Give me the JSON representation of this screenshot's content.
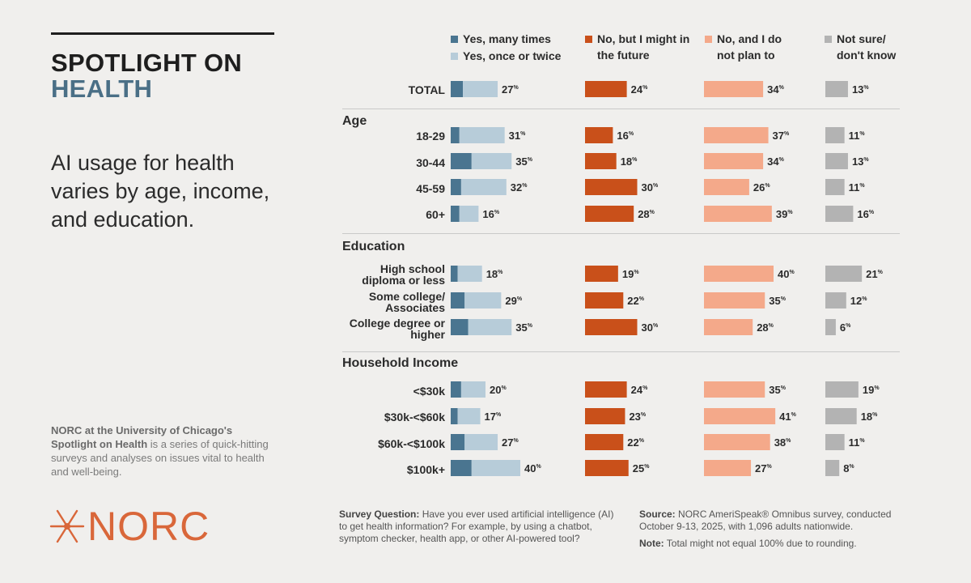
{
  "header": {
    "line1": "SPOTLIGHT ON",
    "line2": "HEALTH"
  },
  "headline": "AI usage for health varies by age, income, and education.",
  "about": {
    "org": "NORC at the University of Chicago's",
    "series": "Spotlight on Health",
    "rest": "is a series of quick-hitting surveys and analyses on issues vital to health and well-being."
  },
  "logo": {
    "word": "NORC"
  },
  "footer": {
    "question_label": "Survey Question:",
    "question": "Have you ever used artificial intelligence (AI) to get health information? For example, by using a chatbot, symptom checker, health app, or other AI-powered tool?",
    "source_label": "Source:",
    "source": "NORC AmeriSpeak® Omnibus survey, conducted October 9-13, 2025, with 1,096 adults nationwide.",
    "note_label": "Note:",
    "note": "Total might not equal 100% due to rounding."
  },
  "colors": {
    "yes_many": "#4a7590",
    "yes_once": "#b7ccd9",
    "no_future": "#c9501a",
    "no_plan": "#f4a98a",
    "not_sure": "#b3b3b3"
  },
  "chart_data": {
    "type": "bar",
    "orientation": "horizontal",
    "legend": [
      {
        "key": "yes_many",
        "label": "Yes, many times"
      },
      {
        "key": "yes_once",
        "label": "Yes, once or twice"
      },
      {
        "key": "no_future",
        "label": "No, but I might in the future"
      },
      {
        "key": "no_plan",
        "label": "No, and I do not plan to"
      },
      {
        "key": "not_sure",
        "label": "Not sure/ don't know"
      }
    ],
    "percent_suffix": "%",
    "groups": [
      {
        "name": "",
        "rows": [
          {
            "label": "TOTAL",
            "yes_many": 7,
            "yes_total": 27,
            "no_future": 24,
            "no_plan": 34,
            "not_sure": 13
          }
        ]
      },
      {
        "name": "Age",
        "rows": [
          {
            "label": "18-29",
            "yes_many": 5,
            "yes_total": 31,
            "no_future": 16,
            "no_plan": 37,
            "not_sure": 11
          },
          {
            "label": "30-44",
            "yes_many": 12,
            "yes_total": 35,
            "no_future": 18,
            "no_plan": 34,
            "not_sure": 13
          },
          {
            "label": "45-59",
            "yes_many": 6,
            "yes_total": 32,
            "no_future": 30,
            "no_plan": 26,
            "not_sure": 11
          },
          {
            "label": "60+",
            "yes_many": 5,
            "yes_total": 16,
            "no_future": 28,
            "no_plan": 39,
            "not_sure": 16
          }
        ]
      },
      {
        "name": "Education",
        "rows": [
          {
            "label": "High school diploma or less",
            "yes_many": 4,
            "yes_total": 18,
            "no_future": 19,
            "no_plan": 40,
            "not_sure": 21
          },
          {
            "label": "Some college/ Associates",
            "yes_many": 8,
            "yes_total": 29,
            "no_future": 22,
            "no_plan": 35,
            "not_sure": 12
          },
          {
            "label": "College degree or higher",
            "yes_many": 10,
            "yes_total": 35,
            "no_future": 30,
            "no_plan": 28,
            "not_sure": 6
          }
        ]
      },
      {
        "name": "Household Income",
        "rows": [
          {
            "label": "<$30k",
            "yes_many": 6,
            "yes_total": 20,
            "no_future": 24,
            "no_plan": 35,
            "not_sure": 19
          },
          {
            "label": "$30k-<$60k",
            "yes_many": 4,
            "yes_total": 17,
            "no_future": 23,
            "no_plan": 41,
            "not_sure": 18
          },
          {
            "label": "$60k-<$100k",
            "yes_many": 8,
            "yes_total": 27,
            "no_future": 22,
            "no_plan": 38,
            "not_sure": 11
          },
          {
            "label": "$100k+",
            "yes_many": 12,
            "yes_total": 40,
            "no_future": 25,
            "no_plan": 27,
            "not_sure": 8
          }
        ]
      }
    ]
  }
}
